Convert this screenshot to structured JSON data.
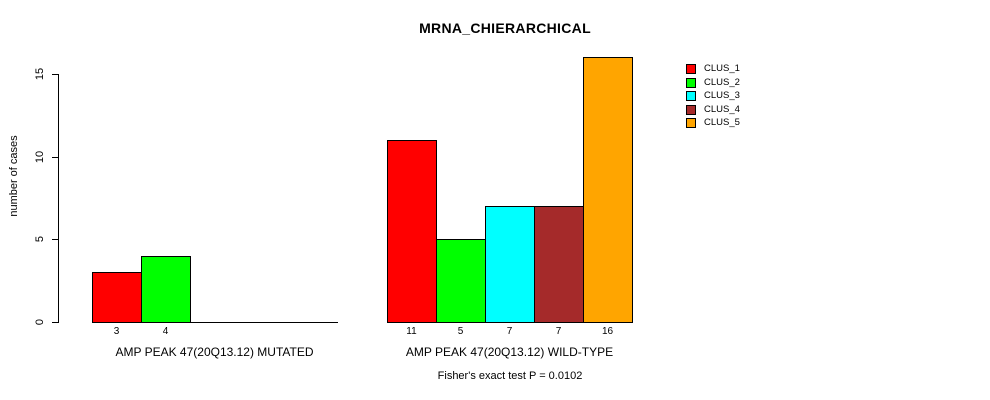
{
  "chart_data": {
    "type": "bar",
    "title": "MRNA_CHIERARCHICAL",
    "ylabel": "number of cases",
    "xlabel": "",
    "ylim": [
      0,
      15
    ],
    "yticks": [
      0,
      5,
      10,
      15
    ],
    "grid": false,
    "legend_position": "right",
    "series": [
      {
        "name": "CLUS_1",
        "color": "#FF0000"
      },
      {
        "name": "CLUS_2",
        "color": "#00FF00"
      },
      {
        "name": "CLUS_3",
        "color": "#00FFFF"
      },
      {
        "name": "CLUS_4",
        "color": "#A52A2A"
      },
      {
        "name": "CLUS_5",
        "color": "#FFA500"
      }
    ],
    "categories": [
      "AMP PEAK 47(20Q13.12) MUTATED",
      "AMP PEAK 47(20Q13.12) WILD-TYPE"
    ],
    "groups": [
      {
        "label": "AMP PEAK 47(20Q13.12) MUTATED",
        "values": [
          3,
          4,
          0,
          0,
          0
        ]
      },
      {
        "label": "AMP PEAK 47(20Q13.12) WILD-TYPE",
        "values": [
          11,
          5,
          7,
          7,
          16
        ]
      }
    ],
    "footnote": "Fisher's exact test P = 0.0102",
    "axis_color": "#000000",
    "background_color": "#FFFFFF"
  }
}
